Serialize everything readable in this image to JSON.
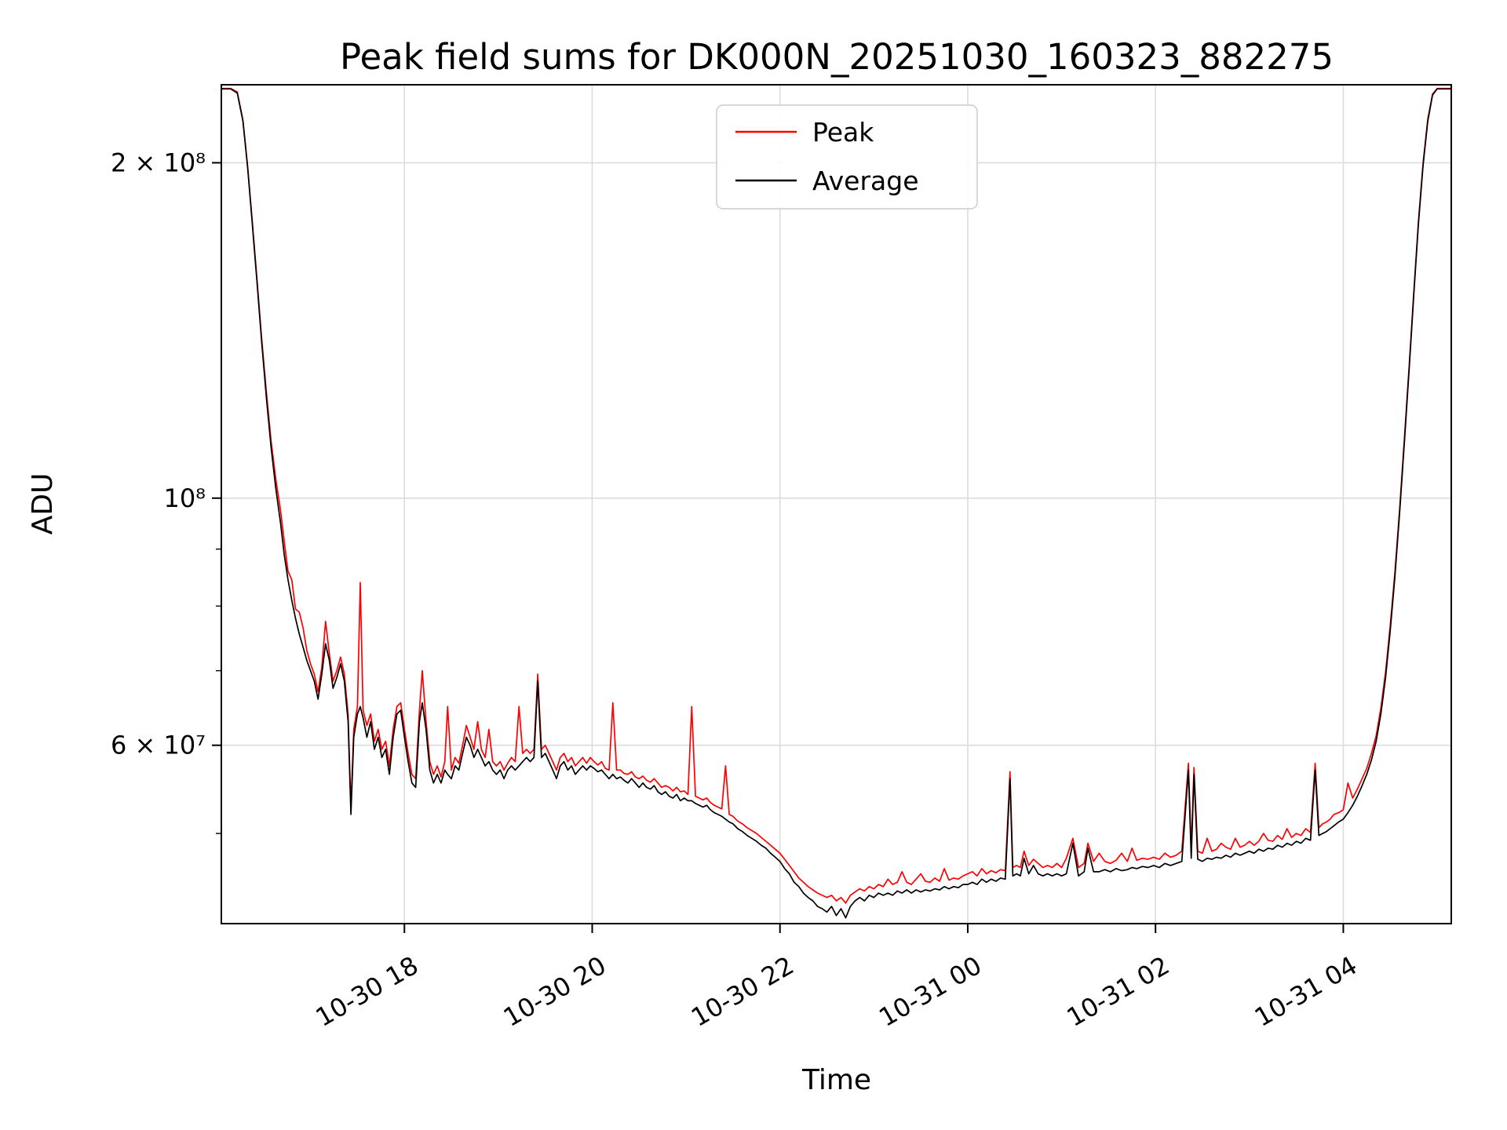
{
  "chart_data": {
    "type": "line",
    "title": "Peak field sums for DK000N_20251030_160323_882275",
    "xlabel": "Time",
    "ylabel": "ADU",
    "y_scale": "log",
    "grid": true,
    "grid_color": "#dcdcdc",
    "legend_position": "upper center",
    "x_encoding": "hours after 2025-10-30 16:00",
    "values_scale": 10000000,
    "xlim": [
      0.05,
      13.15
    ],
    "ylim": [
      41500000,
      235000000
    ],
    "x_ticks": [
      {
        "value": 2,
        "label": "10-30 18"
      },
      {
        "value": 4,
        "label": "10-30 20"
      },
      {
        "value": 6,
        "label": "10-30 22"
      },
      {
        "value": 8,
        "label": "10-31 00"
      },
      {
        "value": 10,
        "label": "10-31 02"
      },
      {
        "value": 12,
        "label": "10-31 04"
      }
    ],
    "y_ticks": [
      {
        "value": 200000000,
        "label": "2 × 10⁸"
      },
      {
        "value": 100000000,
        "label": "10⁸"
      },
      {
        "value": 60000000,
        "label": "6 × 10⁷"
      }
    ],
    "y_minor_ticks": [
      50000000,
      70000000,
      80000000,
      90000000
    ],
    "x": [
      0.05,
      0.15,
      0.22,
      0.28,
      0.33,
      0.38,
      0.43,
      0.48,
      0.53,
      0.58,
      0.63,
      0.68,
      0.72,
      0.76,
      0.8,
      0.84,
      0.88,
      0.92,
      0.96,
      1.0,
      1.04,
      1.08,
      1.12,
      1.16,
      1.2,
      1.24,
      1.28,
      1.32,
      1.36,
      1.4,
      1.43,
      1.46,
      1.5,
      1.53,
      1.56,
      1.6,
      1.64,
      1.68,
      1.72,
      1.76,
      1.8,
      1.84,
      1.88,
      1.92,
      1.96,
      2.0,
      2.04,
      2.08,
      2.12,
      2.16,
      2.19,
      2.23,
      2.27,
      2.31,
      2.35,
      2.39,
      2.43,
      2.46,
      2.5,
      2.54,
      2.58,
      2.62,
      2.66,
      2.7,
      2.74,
      2.78,
      2.82,
      2.86,
      2.9,
      2.94,
      2.98,
      3.02,
      3.06,
      3.1,
      3.14,
      3.18,
      3.22,
      3.26,
      3.3,
      3.34,
      3.38,
      3.42,
      3.46,
      3.5,
      3.54,
      3.58,
      3.62,
      3.66,
      3.7,
      3.74,
      3.78,
      3.82,
      3.86,
      3.9,
      3.94,
      3.98,
      4.02,
      4.06,
      4.1,
      4.14,
      4.18,
      4.22,
      4.26,
      4.3,
      4.34,
      4.38,
      4.42,
      4.46,
      4.5,
      4.54,
      4.58,
      4.62,
      4.66,
      4.7,
      4.74,
      4.78,
      4.82,
      4.86,
      4.9,
      4.94,
      4.98,
      5.02,
      5.06,
      5.1,
      5.14,
      5.18,
      5.22,
      5.26,
      5.3,
      5.34,
      5.38,
      5.42,
      5.46,
      5.5,
      5.55,
      5.6,
      5.65,
      5.7,
      5.75,
      5.8,
      5.85,
      5.9,
      5.95,
      6.0,
      6.05,
      6.1,
      6.15,
      6.2,
      6.25,
      6.3,
      6.35,
      6.4,
      6.45,
      6.5,
      6.55,
      6.6,
      6.65,
      6.7,
      6.75,
      6.8,
      6.85,
      6.9,
      6.95,
      7.0,
      7.05,
      7.1,
      7.15,
      7.2,
      7.25,
      7.3,
      7.35,
      7.4,
      7.45,
      7.5,
      7.55,
      7.6,
      7.65,
      7.7,
      7.75,
      7.8,
      7.85,
      7.9,
      7.95,
      8.0,
      8.05,
      8.1,
      8.15,
      8.2,
      8.25,
      8.3,
      8.35,
      8.4,
      8.45,
      8.48,
      8.52,
      8.56,
      8.6,
      8.65,
      8.7,
      8.75,
      8.8,
      8.85,
      8.9,
      8.95,
      9.0,
      9.05,
      9.12,
      9.18,
      9.24,
      9.28,
      9.34,
      9.4,
      9.46,
      9.52,
      9.58,
      9.64,
      9.7,
      9.75,
      9.8,
      9.86,
      9.92,
      9.98,
      10.04,
      10.1,
      10.16,
      10.22,
      10.28,
      10.35,
      10.38,
      10.41,
      10.45,
      10.5,
      10.55,
      10.6,
      10.65,
      10.7,
      10.75,
      10.8,
      10.85,
      10.9,
      10.95,
      11.0,
      11.05,
      11.1,
      11.15,
      11.2,
      11.25,
      11.3,
      11.35,
      11.4,
      11.45,
      11.5,
      11.55,
      11.6,
      11.65,
      11.7,
      11.74,
      11.78,
      11.82,
      11.86,
      11.9,
      11.95,
      12.0,
      12.05,
      12.1,
      12.15,
      12.2,
      12.25,
      12.3,
      12.35,
      12.4,
      12.45,
      12.5,
      12.55,
      12.6,
      12.65,
      12.7,
      12.75,
      12.8,
      12.85,
      12.9,
      12.95,
      13.0,
      13.08,
      13.15
    ],
    "series": [
      {
        "name": "Peak",
        "color": "#ff0000",
        "values": [
          23.32,
          23.32,
          23.15,
          21.85,
          19.85,
          17.7,
          15.7,
          13.9,
          12.45,
          11.25,
          10.4,
          9.75,
          9.15,
          8.6,
          8.45,
          7.95,
          7.9,
          7.65,
          7.3,
          7.1,
          6.95,
          6.7,
          7.05,
          7.75,
          7.25,
          6.85,
          7.0,
          7.2,
          6.95,
          6.4,
          5.28,
          6.2,
          6.5,
          8.4,
          6.45,
          6.25,
          6.4,
          6.05,
          6.2,
          5.95,
          6.05,
          5.75,
          6.2,
          6.5,
          6.55,
          6.2,
          5.9,
          5.65,
          5.6,
          6.45,
          7.0,
          6.3,
          5.8,
          5.65,
          5.75,
          5.62,
          5.8,
          6.5,
          5.7,
          5.85,
          5.78,
          6.0,
          6.25,
          6.1,
          5.95,
          6.3,
          5.95,
          5.85,
          6.2,
          5.8,
          5.75,
          5.8,
          5.7,
          5.78,
          5.85,
          5.8,
          6.5,
          5.9,
          5.95,
          5.9,
          5.95,
          6.95,
          5.95,
          6.0,
          5.9,
          5.8,
          5.7,
          5.85,
          5.9,
          5.8,
          5.85,
          5.75,
          5.8,
          5.85,
          5.78,
          5.85,
          5.8,
          5.76,
          5.8,
          5.72,
          5.7,
          6.55,
          5.7,
          5.7,
          5.66,
          5.65,
          5.68,
          5.62,
          5.6,
          5.63,
          5.58,
          5.56,
          5.6,
          5.55,
          5.5,
          5.52,
          5.5,
          5.46,
          5.5,
          5.45,
          5.46,
          5.42,
          6.5,
          5.4,
          5.38,
          5.36,
          5.38,
          5.33,
          5.3,
          5.28,
          5.26,
          5.75,
          5.2,
          5.18,
          5.13,
          5.1,
          5.06,
          5.03,
          5.0,
          4.96,
          4.92,
          4.88,
          4.84,
          4.8,
          4.74,
          4.68,
          4.62,
          4.56,
          4.52,
          4.48,
          4.45,
          4.42,
          4.4,
          4.38,
          4.4,
          4.35,
          4.38,
          4.33,
          4.4,
          4.43,
          4.46,
          4.44,
          4.48,
          4.46,
          4.5,
          4.48,
          4.55,
          4.5,
          4.52,
          4.62,
          4.52,
          4.5,
          4.55,
          4.6,
          4.53,
          4.52,
          4.56,
          4.53,
          4.65,
          4.54,
          4.56,
          4.55,
          4.58,
          4.6,
          4.62,
          4.58,
          4.65,
          4.6,
          4.63,
          4.61,
          4.64,
          4.63,
          5.68,
          4.66,
          4.68,
          4.66,
          4.82,
          4.68,
          4.74,
          4.7,
          4.66,
          4.68,
          4.66,
          4.7,
          4.66,
          4.75,
          4.95,
          4.66,
          4.7,
          4.9,
          4.72,
          4.8,
          4.72,
          4.7,
          4.73,
          4.8,
          4.72,
          4.85,
          4.73,
          4.75,
          4.74,
          4.76,
          4.74,
          4.8,
          4.76,
          4.78,
          4.82,
          5.78,
          4.85,
          5.73,
          4.82,
          4.8,
          4.95,
          4.82,
          4.84,
          4.9,
          4.86,
          4.84,
          4.95,
          4.86,
          4.88,
          4.92,
          4.88,
          4.92,
          5.0,
          4.93,
          4.92,
          4.98,
          4.94,
          5.05,
          4.96,
          5.0,
          4.98,
          5.05,
          5.01,
          5.78,
          5.06,
          5.1,
          5.12,
          5.15,
          5.2,
          5.22,
          5.25,
          5.55,
          5.38,
          5.48,
          5.6,
          5.72,
          5.9,
          6.12,
          6.48,
          6.98,
          7.68,
          8.58,
          9.78,
          11.3,
          13.1,
          15.3,
          17.7,
          20.0,
          21.9,
          23.05,
          23.32,
          23.32,
          23.32
        ]
      },
      {
        "name": "Average",
        "color": "#000000",
        "values": [
          23.3,
          23.3,
          23.1,
          21.8,
          19.8,
          17.6,
          15.6,
          13.8,
          12.3,
          11.1,
          10.2,
          9.5,
          8.9,
          8.45,
          8.1,
          7.8,
          7.55,
          7.35,
          7.15,
          7.0,
          6.85,
          6.6,
          6.95,
          7.4,
          7.15,
          6.75,
          6.9,
          7.1,
          6.85,
          6.3,
          5.2,
          6.1,
          6.4,
          6.5,
          6.35,
          6.1,
          6.3,
          5.95,
          6.1,
          5.85,
          5.95,
          5.65,
          6.1,
          6.4,
          6.45,
          6.1,
          5.8,
          5.55,
          5.5,
          6.3,
          6.55,
          6.2,
          5.7,
          5.55,
          5.65,
          5.55,
          5.7,
          5.65,
          5.6,
          5.75,
          5.7,
          5.9,
          6.1,
          6.0,
          5.85,
          5.95,
          5.85,
          5.75,
          5.8,
          5.7,
          5.65,
          5.7,
          5.6,
          5.7,
          5.75,
          5.7,
          5.75,
          5.8,
          5.85,
          5.8,
          5.85,
          6.85,
          5.85,
          5.9,
          5.8,
          5.7,
          5.6,
          5.75,
          5.8,
          5.7,
          5.75,
          5.65,
          5.7,
          5.75,
          5.7,
          5.75,
          5.72,
          5.68,
          5.7,
          5.65,
          5.6,
          5.65,
          5.6,
          5.62,
          5.58,
          5.55,
          5.6,
          5.55,
          5.5,
          5.55,
          5.5,
          5.48,
          5.52,
          5.45,
          5.42,
          5.45,
          5.4,
          5.38,
          5.42,
          5.35,
          5.38,
          5.35,
          5.35,
          5.32,
          5.3,
          5.28,
          5.3,
          5.25,
          5.22,
          5.2,
          5.18,
          5.15,
          5.12,
          5.1,
          5.05,
          5.02,
          4.98,
          4.95,
          4.92,
          4.88,
          4.85,
          4.8,
          4.76,
          4.72,
          4.65,
          4.6,
          4.52,
          4.48,
          4.42,
          4.38,
          4.35,
          4.3,
          4.28,
          4.25,
          4.3,
          4.22,
          4.28,
          4.2,
          4.3,
          4.35,
          4.38,
          4.35,
          4.4,
          4.38,
          4.42,
          4.4,
          4.42,
          4.4,
          4.44,
          4.42,
          4.45,
          4.42,
          4.45,
          4.43,
          4.45,
          4.44,
          4.46,
          4.45,
          4.48,
          4.46,
          4.48,
          4.47,
          4.5,
          4.5,
          4.52,
          4.5,
          4.55,
          4.52,
          4.55,
          4.53,
          4.56,
          4.55,
          5.6,
          4.58,
          4.6,
          4.58,
          4.75,
          4.6,
          4.68,
          4.6,
          4.58,
          4.6,
          4.58,
          4.6,
          4.58,
          4.6,
          4.9,
          4.58,
          4.62,
          4.85,
          4.62,
          4.62,
          4.64,
          4.62,
          4.65,
          4.63,
          4.64,
          4.66,
          4.65,
          4.67,
          4.66,
          4.68,
          4.66,
          4.7,
          4.68,
          4.7,
          4.72,
          5.7,
          4.75,
          5.65,
          4.74,
          4.72,
          4.75,
          4.74,
          4.76,
          4.75,
          4.78,
          4.76,
          4.8,
          4.78,
          4.8,
          4.82,
          4.8,
          4.84,
          4.82,
          4.85,
          4.84,
          4.88,
          4.86,
          4.9,
          4.88,
          4.92,
          4.9,
          4.95,
          4.93,
          5.7,
          4.98,
          5.0,
          5.02,
          5.05,
          5.08,
          5.12,
          5.15,
          5.22,
          5.3,
          5.4,
          5.52,
          5.65,
          5.82,
          6.05,
          6.4,
          6.9,
          7.6,
          8.5,
          9.7,
          11.2,
          13.0,
          15.2,
          17.6,
          19.9,
          21.8,
          23.0,
          23.3,
          23.3,
          23.3
        ]
      }
    ]
  }
}
